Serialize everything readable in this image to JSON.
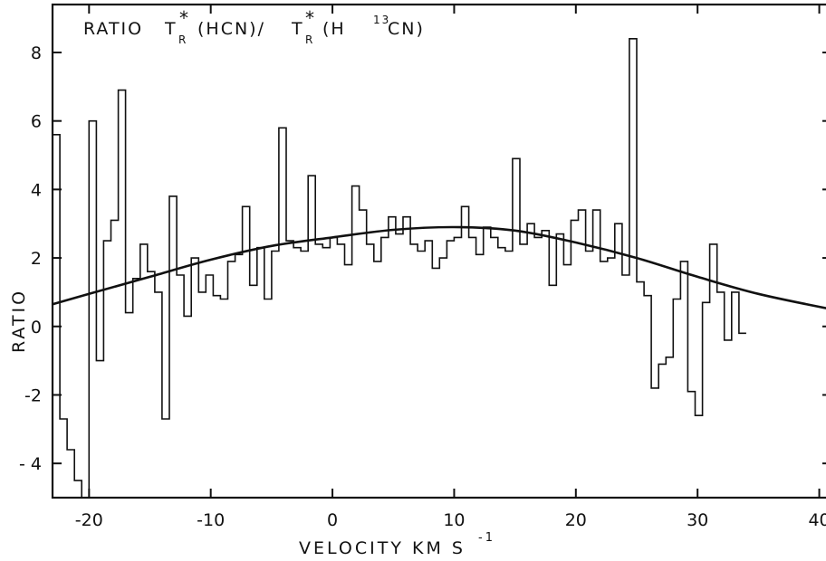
{
  "chart_data": {
    "type": "line",
    "title_parts": {
      "prefix": "RATIO",
      "t1": "T",
      "sup1": "*",
      "sub1": "R",
      "mid": "(HCN)/",
      "t2": "T",
      "sup2": "*",
      "sub2": "R",
      "open": "(H",
      "iso": "13",
      "close": "CN)"
    },
    "xlabel_parts": {
      "main": "VELOCITY   KM S",
      "sup": "-1"
    },
    "ylabel": "RATIO",
    "xlim": [
      -23,
      41
    ],
    "ylim": [
      -5,
      9.4
    ],
    "xticks": [
      -20,
      -10,
      0,
      10,
      20,
      30,
      40
    ],
    "xtick_labels": [
      "-20",
      "-10",
      "0",
      "10",
      "20",
      "30",
      "40"
    ],
    "yticks": [
      -4,
      -2,
      0,
      2,
      4,
      6,
      8
    ],
    "ytick_labels": [
      "- 4",
      "-2",
      "0",
      "2",
      "4",
      "6",
      "8"
    ],
    "grid": false,
    "series": [
      {
        "style": "histogram-step",
        "bin_width": 0.6,
        "x_start": -23.0,
        "values": [
          5.6,
          -2.7,
          -3.6,
          -4.5,
          -5.0,
          6.0,
          -1.0,
          2.5,
          3.1,
          6.9,
          0.4,
          1.4,
          2.4,
          1.6,
          1.0,
          -2.7,
          3.8,
          1.5,
          0.3,
          2.0,
          1.0,
          1.5,
          0.9,
          0.8,
          1.9,
          2.1,
          3.5,
          1.2,
          2.3,
          0.8,
          2.2,
          5.8,
          2.5,
          2.3,
          2.2,
          4.4,
          2.4,
          2.3,
          2.6,
          2.4,
          1.8,
          4.1,
          3.4,
          2.4,
          1.9,
          2.6,
          3.2,
          2.7,
          3.2,
          2.4,
          2.2,
          2.5,
          1.7,
          2.0,
          2.5,
          2.6,
          3.5,
          2.6,
          2.1,
          2.9,
          2.6,
          2.3,
          2.2,
          4.9,
          2.4,
          3.0,
          2.6,
          2.8,
          1.2,
          2.7,
          1.8,
          3.1,
          3.4,
          2.2,
          3.4,
          1.9,
          2.0,
          3.0,
          1.5,
          8.4,
          1.3,
          0.9,
          -1.8,
          -1.1,
          -0.9,
          0.8,
          1.9,
          -1.9,
          -2.6,
          0.7,
          2.4,
          1.0,
          -0.4,
          1.0,
          -0.2
        ]
      },
      {
        "style": "smooth-fit",
        "x": [
          -23,
          -20,
          -15,
          -10,
          -5,
          0,
          5,
          10,
          15,
          20,
          25,
          30,
          35,
          41
        ],
        "y": [
          0.65,
          0.95,
          1.45,
          1.95,
          2.35,
          2.6,
          2.82,
          2.9,
          2.8,
          2.45,
          2.0,
          1.45,
          0.95,
          0.5
        ]
      }
    ]
  }
}
